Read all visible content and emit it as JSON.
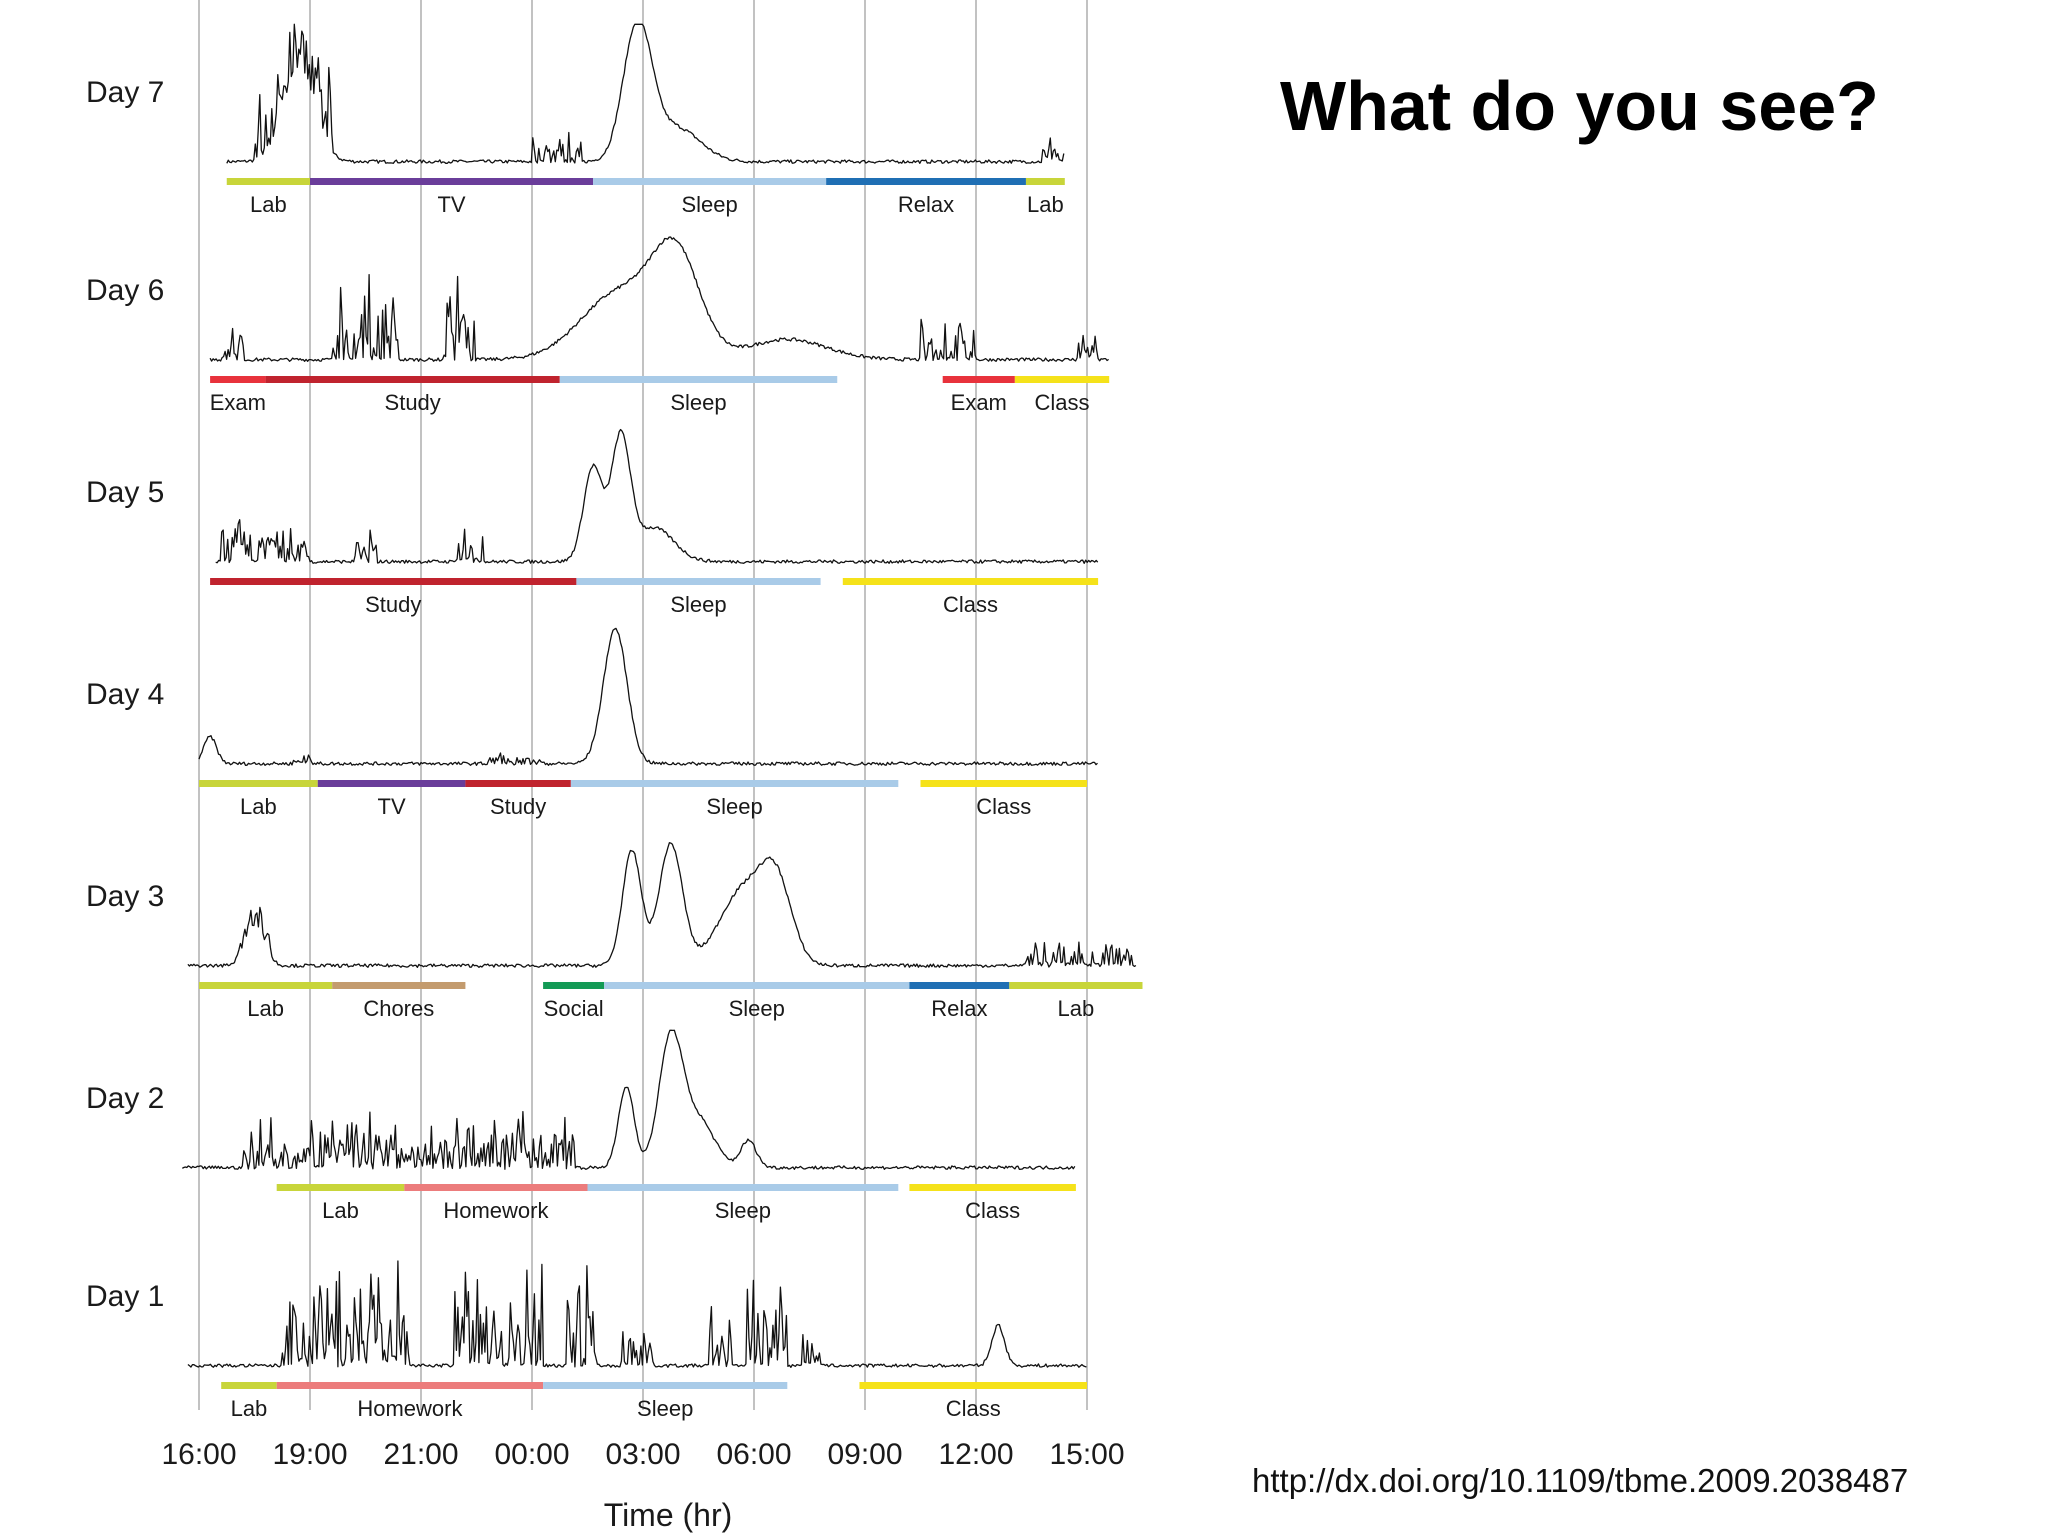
{
  "slide": {
    "title": "What do you see?",
    "doi": "http://dx.doi.org/10.1109/tbme.2009.2038487"
  },
  "chart_data": {
    "type": "line",
    "title": "",
    "xlabel": "Time (hr)",
    "ylabel": "",
    "x_ticks": [
      "16:00",
      "19:00",
      "21:00",
      "00:00",
      "03:00",
      "06:00",
      "09:00",
      "12:00",
      "15:00"
    ],
    "grid": true,
    "colors": {
      "Lab": "#c8d53a",
      "TV": "#6a3d9a",
      "Sleep": "#a9cbe8",
      "Relax": "#1f6fb4",
      "Exam": "#e8323c",
      "Study": "#c0232e",
      "Class": "#f5e21a",
      "Chores": "#c39b6e",
      "Social": "#139a55",
      "Homework": "#ec7c7c"
    },
    "days": [
      {
        "label": "Day 7",
        "activities": [
          {
            "name": "Lab",
            "start": 0.25,
            "end": 1.0
          },
          {
            "name": "TV",
            "start": 1.0,
            "end": 3.55
          },
          {
            "name": "Sleep",
            "start": 3.55,
            "end": 5.65
          },
          {
            "name": "Relax",
            "start": 5.65,
            "end": 7.45
          },
          {
            "name": "Lab",
            "start": 7.45,
            "end": 7.8
          }
        ],
        "signal": {
          "start": 0.25,
          "end": 7.8,
          "peaks": [
            [
              0.9,
              0.7,
              0.2
            ],
            [
              3.95,
              1.0,
              0.18
            ],
            [
              4.3,
              0.25,
              0.3
            ]
          ],
          "active": [
            [
              0.5,
              1.2,
              0.6
            ],
            [
              3.0,
              3.45,
              0.25
            ],
            [
              7.6,
              7.8,
              0.2
            ]
          ]
        }
      },
      {
        "label": "Day 6",
        "activities": [
          {
            "name": "Exam",
            "start": 0.1,
            "end": 0.6
          },
          {
            "name": "Study",
            "start": 0.6,
            "end": 3.25
          },
          {
            "name": "Sleep",
            "start": 3.25,
            "end": 5.75
          },
          {
            "name": "Exam",
            "start": 6.7,
            "end": 7.35
          },
          {
            "name": "Class",
            "start": 7.35,
            "end": 8.2
          }
        ],
        "signal": {
          "start": 0.1,
          "end": 8.2,
          "peaks": [
            [
              3.8,
              0.5,
              0.5
            ],
            [
              4.3,
              0.7,
              0.3
            ],
            [
              5.3,
              0.15,
              0.5
            ]
          ],
          "active": [
            [
              0.2,
              0.4,
              0.4
            ],
            [
              1.2,
              1.8,
              0.75
            ],
            [
              2.2,
              2.5,
              0.7
            ],
            [
              6.5,
              7.0,
              0.35
            ],
            [
              7.9,
              8.1,
              0.3
            ]
          ]
        }
      },
      {
        "label": "Day 5",
        "activities": [
          {
            "name": "Study",
            "start": 0.1,
            "end": 3.4
          },
          {
            "name": "Sleep",
            "start": 3.4,
            "end": 5.6
          },
          {
            "name": "Class",
            "start": 5.8,
            "end": 8.1
          }
        ],
        "signal": {
          "start": 0.15,
          "end": 8.1,
          "peaks": [
            [
              3.55,
              0.7,
              0.12
            ],
            [
              3.8,
              0.9,
              0.12
            ],
            [
              4.1,
              0.25,
              0.25
            ]
          ],
          "active": [
            [
              0.2,
              1.0,
              0.35
            ],
            [
              1.4,
              1.6,
              0.25
            ],
            [
              2.3,
              2.6,
              0.3
            ]
          ]
        }
      },
      {
        "label": "Day 4",
        "activities": [
          {
            "name": "Lab",
            "start": 0.0,
            "end": 1.07
          },
          {
            "name": "TV",
            "start": 1.07,
            "end": 2.4
          },
          {
            "name": "Study",
            "start": 2.4,
            "end": 3.35
          },
          {
            "name": "Sleep",
            "start": 3.35,
            "end": 6.3
          },
          {
            "name": "Class",
            "start": 6.5,
            "end": 8.0
          }
        ],
        "signal": {
          "start": 0.0,
          "end": 8.1,
          "peaks": [
            [
              3.75,
              1.0,
              0.15
            ],
            [
              0.1,
              0.2,
              0.08
            ]
          ],
          "active": [
            [
              0.85,
              1.05,
              0.12
            ],
            [
              2.6,
              3.1,
              0.08
            ]
          ]
        }
      },
      {
        "label": "Day 3",
        "activities": [
          {
            "name": "Lab",
            "start": 0.0,
            "end": 1.2
          },
          {
            "name": "Chores",
            "start": 1.2,
            "end": 2.4
          },
          {
            "name": "Social",
            "start": 3.1,
            "end": 3.65
          },
          {
            "name": "Sleep",
            "start": 3.65,
            "end": 6.4
          },
          {
            "name": "Relax",
            "start": 6.4,
            "end": 7.3
          },
          {
            "name": "Lab",
            "start": 7.3,
            "end": 8.5
          }
        ],
        "signal": {
          "start": -0.1,
          "end": 8.45,
          "peaks": [
            [
              0.5,
              0.3,
              0.12
            ],
            [
              3.9,
              0.85,
              0.12
            ],
            [
              4.25,
              0.9,
              0.15
            ],
            [
              4.9,
              0.55,
              0.3
            ],
            [
              5.2,
              0.55,
              0.2
            ]
          ],
          "active": [
            [
              0.3,
              0.7,
              0.25
            ],
            [
              7.4,
              8.4,
              0.25
            ]
          ]
        }
      },
      {
        "label": "Day 2",
        "activities": [
          {
            "name": "Lab",
            "start": 0.7,
            "end": 1.85
          },
          {
            "name": "Homework",
            "start": 1.85,
            "end": 3.5
          },
          {
            "name": "Sleep",
            "start": 3.5,
            "end": 6.3
          },
          {
            "name": "Class",
            "start": 6.4,
            "end": 7.9
          }
        ],
        "signal": {
          "start": -0.15,
          "end": 7.9,
          "peaks": [
            [
              3.85,
              0.6,
              0.1
            ],
            [
              4.25,
              0.95,
              0.15
            ],
            [
              4.5,
              0.35,
              0.2
            ],
            [
              4.95,
              0.2,
              0.1
            ]
          ],
          "active": [
            [
              0.4,
              3.4,
              0.45
            ]
          ]
        }
      },
      {
        "label": "Day 1",
        "activities": [
          {
            "name": "Lab",
            "start": 0.2,
            "end": 0.7
          },
          {
            "name": "Homework",
            "start": 0.7,
            "end": 3.1
          },
          {
            "name": "Sleep",
            "start": 3.1,
            "end": 5.3
          },
          {
            "name": "Class",
            "start": 5.95,
            "end": 8.0
          }
        ],
        "signal": {
          "start": -0.1,
          "end": 8.0,
          "peaks": [
            [
              7.2,
              0.3,
              0.08
            ]
          ],
          "active": [
            [
              0.75,
              1.9,
              0.85
            ],
            [
              2.3,
              3.1,
              0.85
            ],
            [
              3.3,
              3.6,
              0.9
            ],
            [
              3.8,
              4.1,
              0.5
            ],
            [
              4.6,
              4.8,
              0.6
            ],
            [
              4.9,
              5.3,
              0.85
            ],
            [
              5.4,
              5.6,
              0.4
            ]
          ]
        }
      }
    ]
  }
}
